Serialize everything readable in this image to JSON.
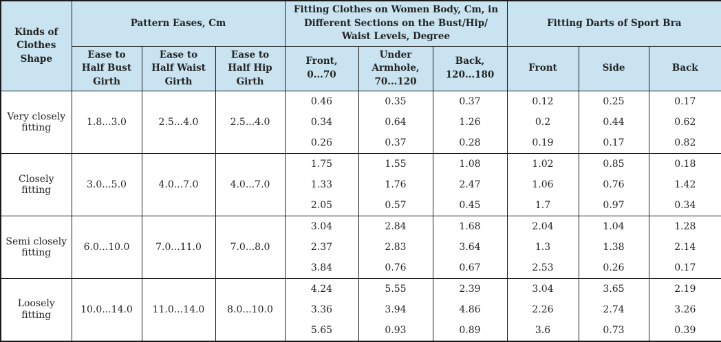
{
  "colors": {
    "header_bg": "#c9e4f0",
    "border": "#1a1a1a",
    "text": "#232323",
    "data_bg": "#ffffff"
  },
  "table": {
    "header": {
      "kinds": "Kinds of Clothes Shape",
      "pattern_eases": "Pattern Eases, Cm",
      "fitting_clothes": "Fitting Clothes on Women Body, Cm, in Different Sections on the Bust/Hip/ Waist Levels, Degree",
      "fitting_darts": "Fitting Darts of Sport Bra",
      "sub": [
        "Ease to Half Bust Girth",
        "Ease to Half Waist Girth",
        "Ease to Half Hip Girth",
        "Front, 0...70",
        "Under Armhole, 70...120",
        "Back, 120...180",
        "Front",
        "Side",
        "Back"
      ]
    },
    "groups": [
      {
        "label": "Very closely fitting",
        "eases": [
          "1.8...3.0",
          "2.5...4.0",
          "2.5...4.0"
        ],
        "rows": [
          [
            "0.46",
            "0.35",
            "0.37",
            "0.12",
            "0.25",
            "0.17"
          ],
          [
            "0.34",
            "0.64",
            "1.26",
            "0.2",
            "0.44",
            "0.62"
          ],
          [
            "0.26",
            "0.37",
            "0.28",
            "0.19",
            "0.17",
            "0.82"
          ]
        ]
      },
      {
        "label": "Closely fitting",
        "eases": [
          "3.0...5.0",
          "4.0...7.0",
          "4.0...7.0"
        ],
        "rows": [
          [
            "1.75",
            "1.55",
            "1.08",
            "1.02",
            "0.85",
            "0.18"
          ],
          [
            "1.33",
            "1.76",
            "2.47",
            "1.06",
            "0.76",
            "1.42"
          ],
          [
            "2.05",
            "0.57",
            "0.45",
            "1.7",
            "0.97",
            "0.34"
          ]
        ]
      },
      {
        "label": "Semi closely fitting",
        "eases": [
          "6.0...10.0",
          "7.0...11.0",
          "7.0...8.0"
        ],
        "rows": [
          [
            "3.04",
            "2.84",
            "1.68",
            "2.04",
            "1.04",
            "1.28"
          ],
          [
            "2.37",
            "2.83",
            "3.64",
            "1.3",
            "1.38",
            "2.14"
          ],
          [
            "3.84",
            "0.76",
            "0.67",
            "2.53",
            "0.26",
            "0.17"
          ]
        ]
      },
      {
        "label": "Loosely fitting",
        "eases": [
          "10.0...14.0",
          "11.0...14.0",
          "8.0...10.0"
        ],
        "rows": [
          [
            "4.24",
            "5.55",
            "2.39",
            "3.04",
            "3.65",
            "2.19"
          ],
          [
            "3.36",
            "3.94",
            "4.86",
            "2.26",
            "2.74",
            "3.26"
          ],
          [
            "5.65",
            "0.93",
            "0.89",
            "3.6",
            "0.73",
            "0.39"
          ]
        ]
      }
    ]
  }
}
